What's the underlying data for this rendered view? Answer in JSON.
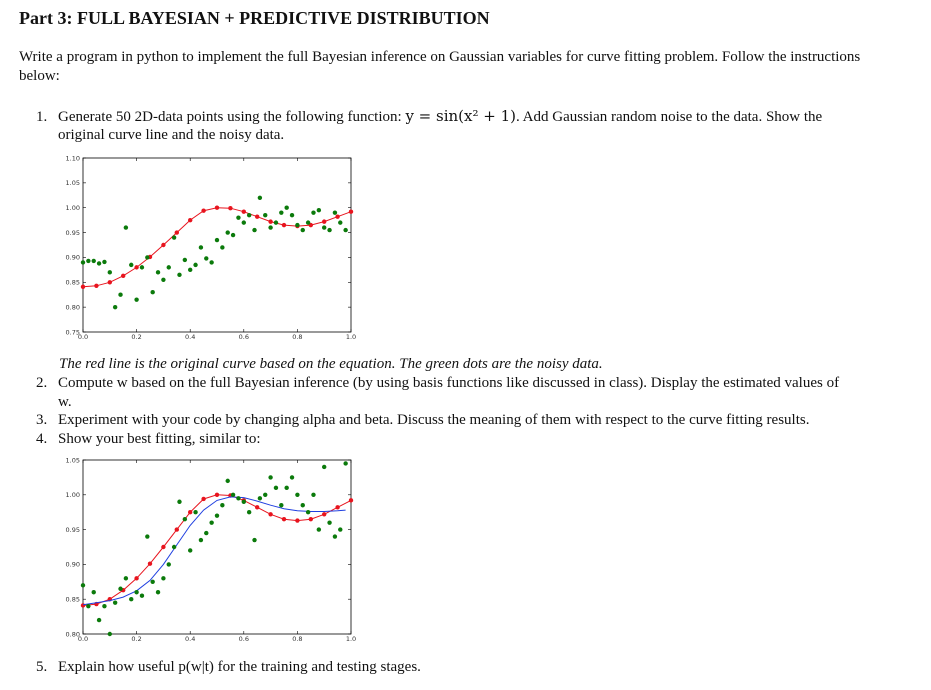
{
  "title": "Part 3: FULL BAYESIAN + PREDICTIVE DISTRIBUTION",
  "intro": "Write a program in python to implement the full Bayesian inference on Gaussian variables for curve fitting problem. Follow the instructions below:",
  "items": [
    {
      "num": "1.",
      "text_before": "Generate 50 2D-data points using the following function:",
      "math": "y = sin(x² + 1)",
      "text_after": ". Add Gaussian random noise to the data. Show the",
      "cont": "original curve line and the noisy data."
    },
    {
      "num": "2.",
      "text": "Compute w based on the full Bayesian inference (by using basis functions like discussed in class). Display the estimated values of",
      "cont": "w."
    },
    {
      "num": "3.",
      "text": "Experiment with your code by changing alpha and beta. Discuss the meaning of them with respect to the curve fitting results."
    },
    {
      "num": "4.",
      "text": "Show your best fitting, similar to:"
    },
    {
      "num": "5.",
      "text": "Explain how useful p(w|t) for the training and testing stages."
    }
  ],
  "caption": "The red line is the original curve based on the equation. The green dots are the noisy data.",
  "colors": {
    "true_curve": "#e8141e",
    "noisy_points": "#0b7a0b",
    "fit_curve": "#1f3fe0"
  },
  "chart_data": [
    {
      "type": "scatter",
      "title": "",
      "xlabel": "",
      "ylabel": "",
      "xlim": [
        0,
        1
      ],
      "ylim": [
        0.75,
        1.1
      ],
      "xticks": [
        "0.0",
        "0.2",
        "0.4",
        "0.6",
        "0.8",
        "1.0"
      ],
      "yticks": [
        "0.75",
        "0.80",
        "0.85",
        "0.90",
        "0.95",
        "1.00",
        "1.05",
        "1.10"
      ],
      "series": [
        {
          "kind": "line+markers",
          "color": "red",
          "x": [
            0,
            0.05,
            0.1,
            0.15,
            0.2,
            0.25,
            0.3,
            0.35,
            0.4,
            0.45,
            0.5,
            0.55,
            0.6,
            0.65,
            0.7,
            0.75,
            0.8,
            0.85,
            0.9,
            0.95,
            1.0
          ],
          "y": [
            0.841,
            0.843,
            0.85,
            0.863,
            0.88,
            0.901,
            0.925,
            0.95,
            0.975,
            0.994,
            1.0,
            0.999,
            0.992,
            0.982,
            0.972,
            0.965,
            0.963,
            0.965,
            0.972,
            0.982,
            0.992
          ]
        },
        {
          "kind": "points",
          "color": "green",
          "x": [
            0,
            0.02,
            0.04,
            0.06,
            0.08,
            0.1,
            0.12,
            0.14,
            0.16,
            0.18,
            0.2,
            0.22,
            0.24,
            0.26,
            0.28,
            0.3,
            0.32,
            0.34,
            0.36,
            0.38,
            0.4,
            0.42,
            0.44,
            0.46,
            0.48,
            0.5,
            0.52,
            0.54,
            0.56,
            0.58,
            0.6,
            0.62,
            0.64,
            0.66,
            0.68,
            0.7,
            0.72,
            0.74,
            0.76,
            0.78,
            0.8,
            0.82,
            0.84,
            0.86,
            0.88,
            0.9,
            0.92,
            0.94,
            0.96,
            0.98
          ],
          "y": [
            0.89,
            0.893,
            0.893,
            0.888,
            0.891,
            0.87,
            0.8,
            0.825,
            0.96,
            0.885,
            0.815,
            0.88,
            0.9,
            0.83,
            0.87,
            0.855,
            0.88,
            0.94,
            0.865,
            0.895,
            0.875,
            0.885,
            0.92,
            0.898,
            0.89,
            0.935,
            0.92,
            0.95,
            0.945,
            0.98,
            0.97,
            0.985,
            0.955,
            1.02,
            0.985,
            0.96,
            0.97,
            0.99,
            1.0,
            0.985,
            0.965,
            0.955,
            0.97,
            0.99,
            0.995,
            0.96,
            0.955,
            0.99,
            0.97,
            0.955
          ]
        }
      ]
    },
    {
      "type": "scatter",
      "title": "",
      "xlabel": "",
      "ylabel": "",
      "xlim": [
        0,
        1
      ],
      "ylim": [
        0.8,
        1.05
      ],
      "xticks": [
        "0.0",
        "0.2",
        "0.4",
        "0.6",
        "0.8",
        "1.0"
      ],
      "yticks": [
        "0.80",
        "0.85",
        "0.90",
        "0.95",
        "1.00",
        "1.05"
      ],
      "series": [
        {
          "kind": "line+markers",
          "color": "red",
          "x": [
            0,
            0.05,
            0.1,
            0.15,
            0.2,
            0.25,
            0.3,
            0.35,
            0.4,
            0.45,
            0.5,
            0.55,
            0.6,
            0.65,
            0.7,
            0.75,
            0.8,
            0.85,
            0.9,
            0.95,
            1.0
          ],
          "y": [
            0.841,
            0.843,
            0.85,
            0.863,
            0.88,
            0.901,
            0.925,
            0.95,
            0.975,
            0.994,
            1.0,
            0.999,
            0.992,
            0.982,
            0.972,
            0.965,
            0.963,
            0.965,
            0.972,
            0.982,
            0.992
          ]
        },
        {
          "kind": "line",
          "color": "blue",
          "x": [
            0,
            0.05,
            0.1,
            0.15,
            0.2,
            0.25,
            0.3,
            0.35,
            0.4,
            0.45,
            0.5,
            0.55,
            0.6,
            0.65,
            0.7,
            0.75,
            0.8,
            0.85,
            0.9,
            0.95,
            0.98
          ],
          "y": [
            0.842,
            0.845,
            0.848,
            0.853,
            0.862,
            0.877,
            0.9,
            0.928,
            0.956,
            0.978,
            0.992,
            0.997,
            0.996,
            0.991,
            0.985,
            0.98,
            0.977,
            0.976,
            0.976,
            0.977,
            0.978
          ]
        },
        {
          "kind": "points",
          "color": "green",
          "x": [
            0,
            0.02,
            0.04,
            0.06,
            0.08,
            0.1,
            0.12,
            0.14,
            0.16,
            0.18,
            0.2,
            0.22,
            0.24,
            0.26,
            0.28,
            0.3,
            0.32,
            0.34,
            0.36,
            0.38,
            0.4,
            0.42,
            0.44,
            0.46,
            0.48,
            0.5,
            0.52,
            0.54,
            0.56,
            0.58,
            0.6,
            0.62,
            0.64,
            0.66,
            0.68,
            0.7,
            0.72,
            0.74,
            0.76,
            0.78,
            0.8,
            0.82,
            0.84,
            0.86,
            0.88,
            0.9,
            0.92,
            0.94,
            0.96,
            0.98
          ],
          "y": [
            0.87,
            0.84,
            0.86,
            0.82,
            0.84,
            0.8,
            0.845,
            0.865,
            0.88,
            0.85,
            0.86,
            0.855,
            0.94,
            0.875,
            0.86,
            0.88,
            0.9,
            0.925,
            0.99,
            0.965,
            0.92,
            0.975,
            0.935,
            0.945,
            0.96,
            0.97,
            0.985,
            1.02,
            1.0,
            0.995,
            0.99,
            0.975,
            0.935,
            0.995,
            1.0,
            1.025,
            1.01,
            0.985,
            1.01,
            1.025,
            1.0,
            0.985,
            0.975,
            1.0,
            0.95,
            1.04,
            0.96,
            0.94,
            0.95,
            1.045
          ]
        }
      ]
    }
  ]
}
